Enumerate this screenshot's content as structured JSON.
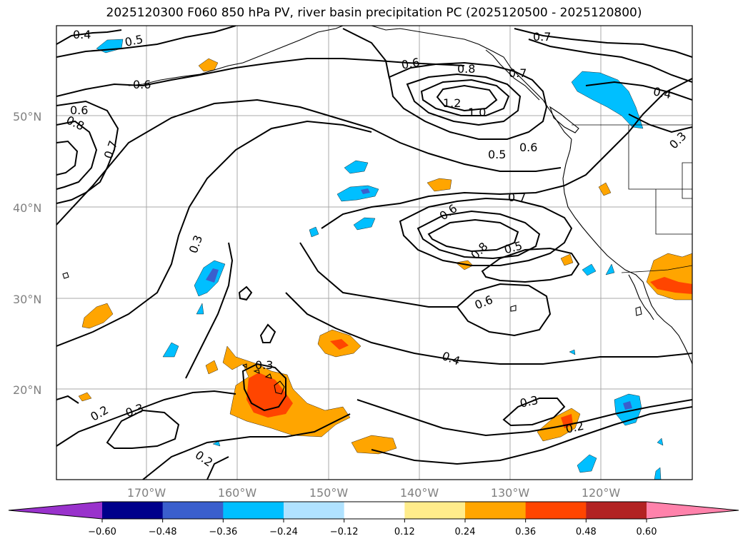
{
  "title": "2025120300 F060 850 hPa PV, river basin precipitation PC (2025120500 - 2025120800)",
  "colors": {
    "neg_06_lt": "#9932cc",
    "neg_048_06": "#00008b",
    "neg_036_048": "#3a5fcd",
    "neg_024_036": "#00bfff",
    "neg_012_024": "#b0e2ff",
    "neutral": "#ffffff",
    "pos_012_024": "#ffec8b",
    "pos_024_036": "#ffa500",
    "pos_036_048": "#ff4500",
    "pos_048_06": "#b22222",
    "pos_06_gt": "#ff82ab",
    "coast": "#000000",
    "grid": "#a9a9a9"
  },
  "map": {
    "lat_labels": [
      "50°N",
      "40°N",
      "30°N",
      "20°N"
    ],
    "lon_labels": [
      "170°W",
      "160°W",
      "150°W",
      "140°W",
      "130°W",
      "120°W"
    ],
    "contour_labels": [
      "0.4",
      "0.5",
      "0.6",
      "0.6",
      "0.8",
      "0.7",
      "0.8",
      "0.7",
      "1.2",
      "1.0",
      "0.6",
      "0.6",
      "0.7",
      "0.5",
      "0.7",
      "0.4",
      "0.3",
      "0.3",
      "0.6",
      "0.8",
      "0.5",
      "0.6",
      "0.4",
      "0.3",
      "0.2",
      "0.3",
      "0.2",
      "0.3",
      "0.2"
    ]
  },
  "chart_data": {
    "type": "map",
    "title": "2025120300 F060 850 hPa PV, river basin precipitation PC (2025120500 - 2025120800)",
    "field_contoured": "850 hPa PV",
    "field_shaded": "river basin precipitation PC",
    "lat_range": [
      10,
      60
    ],
    "lon_range": [
      -180,
      -110
    ],
    "lat_ticks": [
      "50°N",
      "40°N",
      "30°N",
      "20°N"
    ],
    "lon_ticks": [
      "170°W",
      "160°W",
      "150°W",
      "140°W",
      "130°W",
      "120°W"
    ],
    "colorbar": {
      "levels": [
        -0.6,
        -0.48,
        -0.36,
        -0.24,
        -0.12,
        0.12,
        0.24,
        0.36,
        0.48,
        0.6
      ],
      "tick_labels": [
        "−0.60",
        "−0.48",
        "−0.36",
        "−0.24",
        "−0.12",
        "0.12",
        "0.24",
        "0.36",
        "0.48",
        "0.60"
      ],
      "extend": "both"
    }
  }
}
